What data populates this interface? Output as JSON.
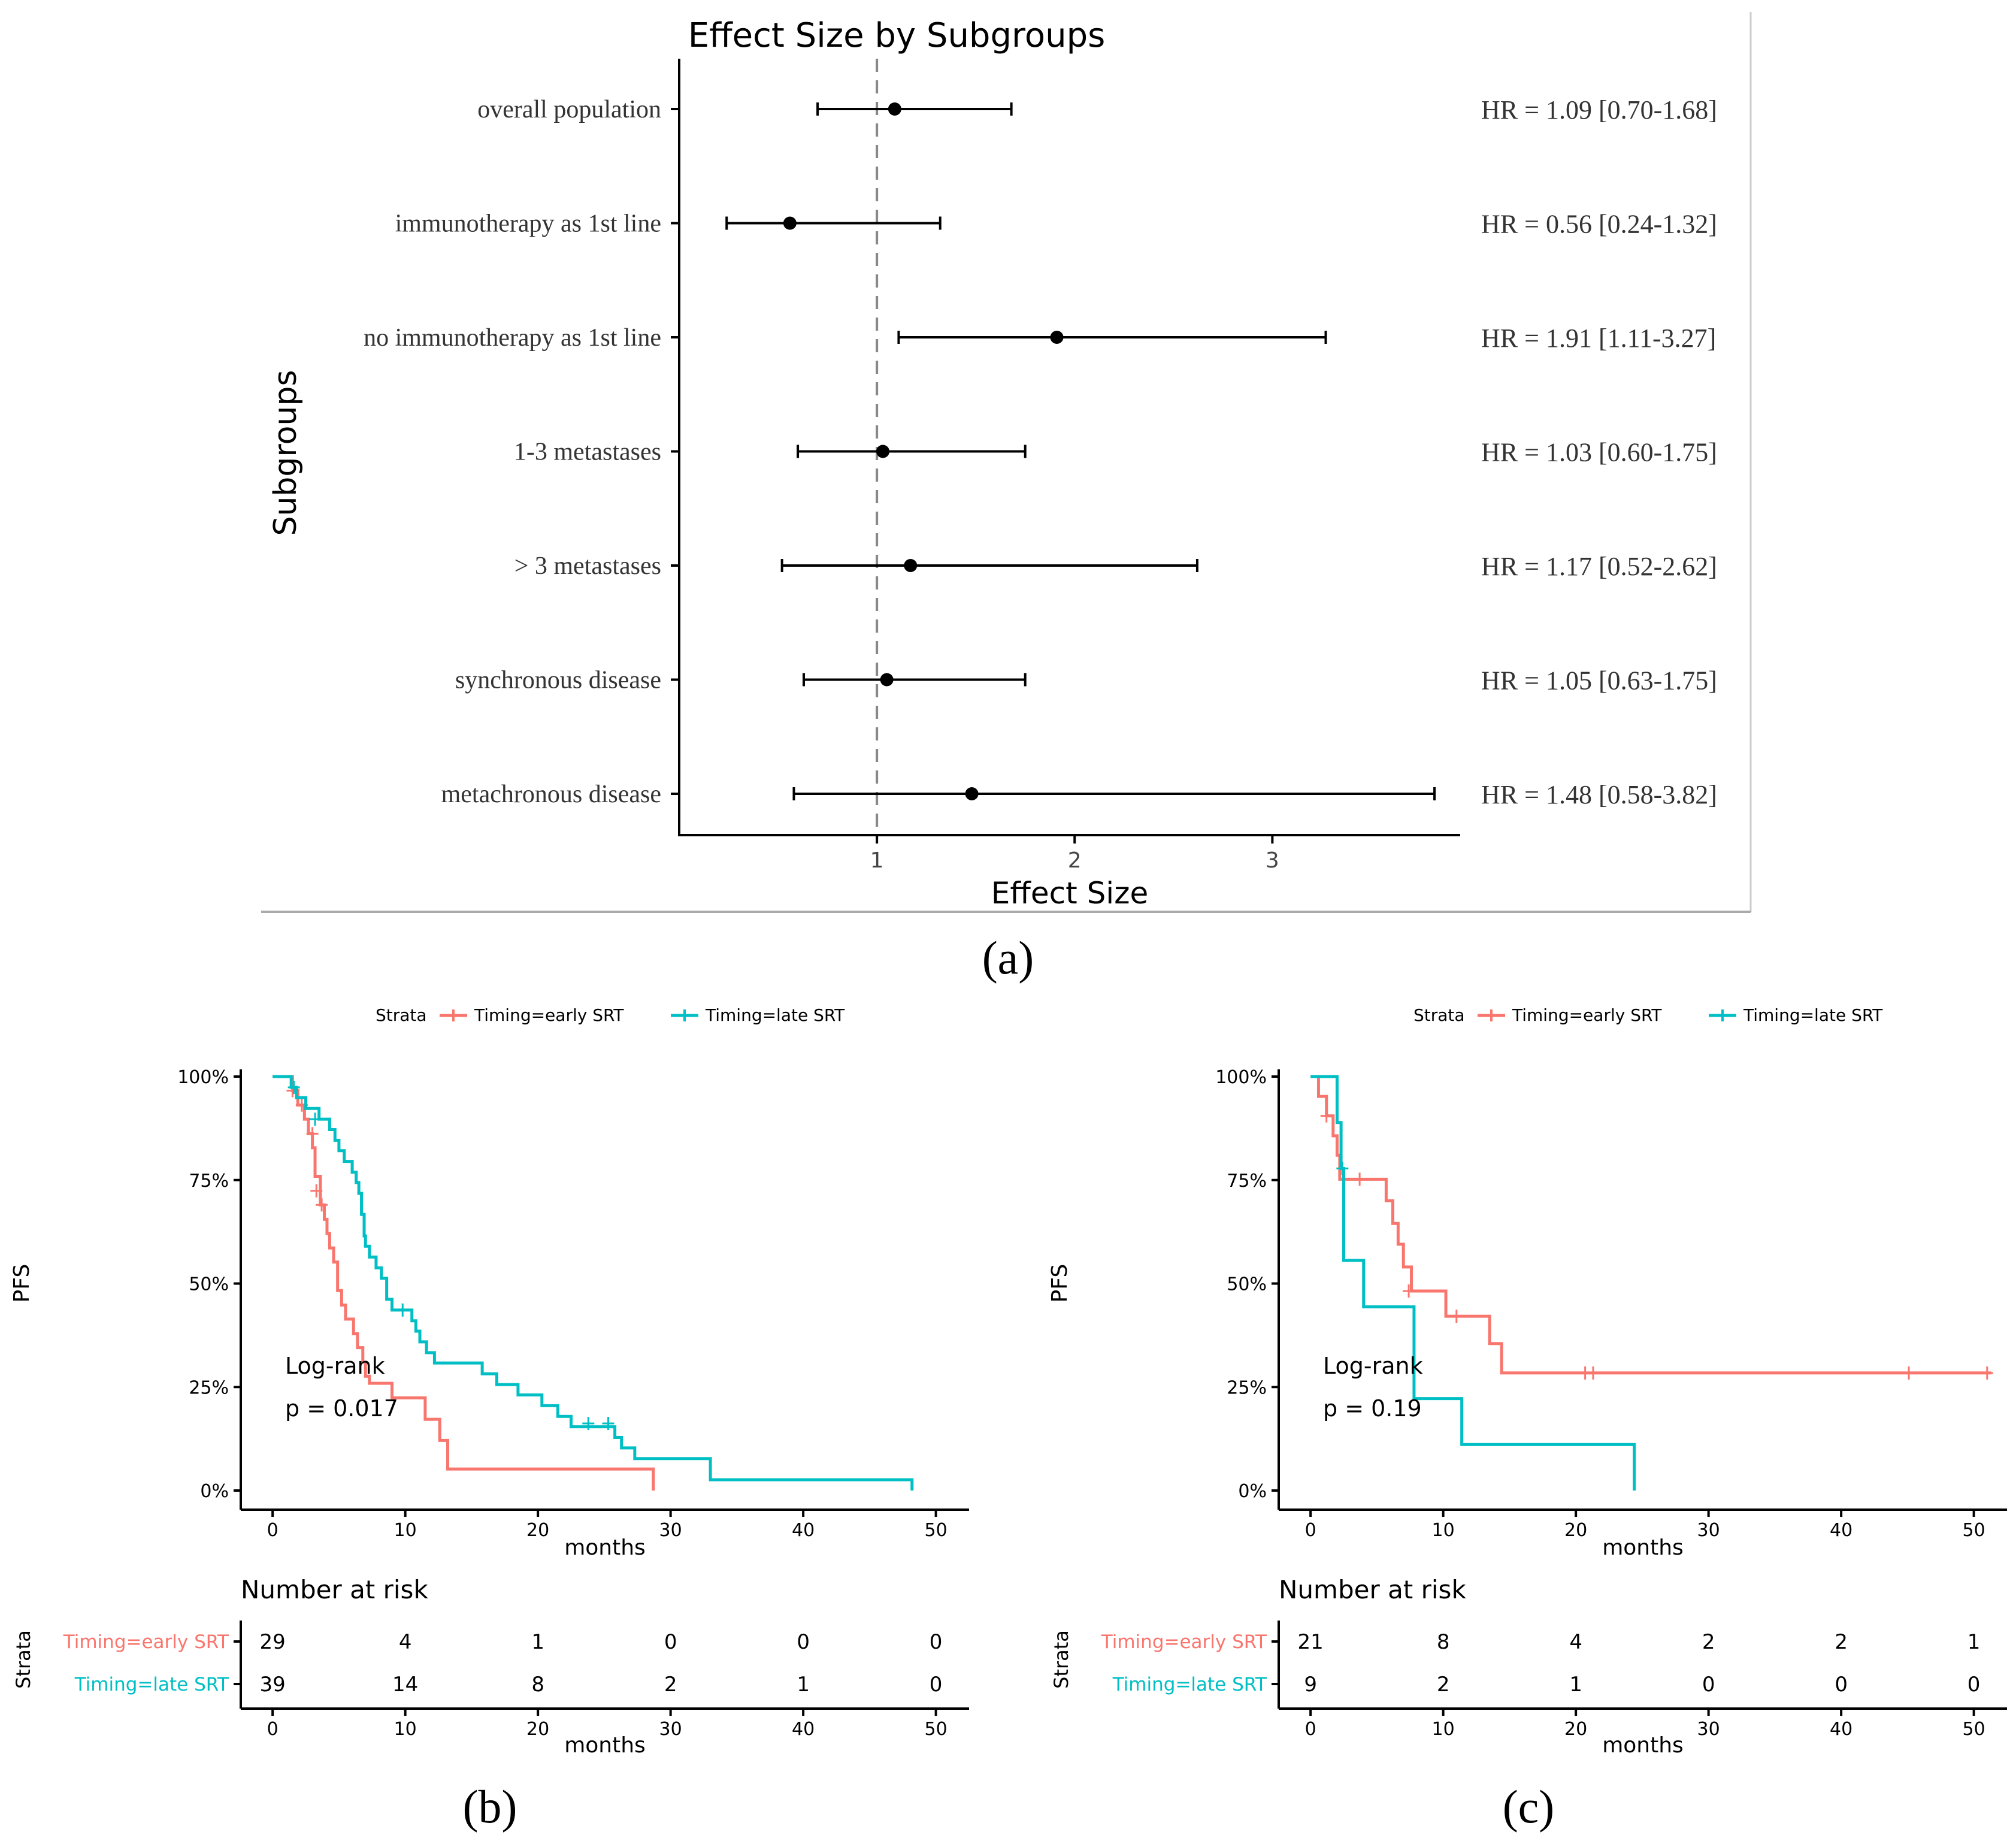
{
  "panel_labels": {
    "a": "(a)",
    "b": "(b)",
    "c": "(c)"
  },
  "colors": {
    "early": "#f8766d",
    "late": "#00bfc4",
    "ink": "#000000",
    "frame": "#cccccc"
  },
  "chart_data": [
    {
      "id": "a",
      "type": "forest",
      "title": "Effect Size by Subgroups",
      "xlabel": "Effect Size",
      "ylabel": "Subgroups",
      "xticks": [
        1,
        2,
        3
      ],
      "xlim": [
        0.0,
        3.95
      ],
      "reference_line": 1,
      "rows": [
        {
          "label": "overall population",
          "est": 1.09,
          "lo": 0.7,
          "hi": 1.68,
          "text": "HR = 1.09 [0.70-1.68]"
        },
        {
          "label": "immunotherapy as 1st line",
          "est": 0.56,
          "lo": 0.24,
          "hi": 1.32,
          "text": "HR = 0.56 [0.24-1.32]"
        },
        {
          "label": "no immunotherapy as 1st line",
          "est": 1.91,
          "lo": 1.11,
          "hi": 3.27,
          "text": "HR = 1.91 [1.11-3.27]"
        },
        {
          "label": "1-3 metastases",
          "est": 1.03,
          "lo": 0.6,
          "hi": 1.75,
          "text": "HR = 1.03 [0.60-1.75]"
        },
        {
          "label": "> 3 metastases",
          "est": 1.17,
          "lo": 0.52,
          "hi": 2.62,
          "text": "HR = 1.17 [0.52-2.62]"
        },
        {
          "label": "synchronous disease",
          "est": 1.05,
          "lo": 0.63,
          "hi": 1.75,
          "text": "HR = 1.05 [0.63-1.75]"
        },
        {
          "label": "metachronous disease",
          "est": 1.48,
          "lo": 0.58,
          "hi": 3.82,
          "text": "HR = 1.48 [0.58-3.82]"
        }
      ]
    },
    {
      "id": "b",
      "type": "line",
      "subtype": "kaplan-meier",
      "legend_title": "Strata",
      "ylabel": "PFS",
      "xlabel": "months",
      "xticks": [
        0,
        10,
        20,
        30,
        40,
        50
      ],
      "xlim": [
        -2.4,
        52.5
      ],
      "yticks": [
        "0%",
        "25%",
        "50%",
        "75%",
        "100%"
      ],
      "ylim": [
        0,
        1
      ],
      "annotation": [
        "Log-rank",
        "p = 0.017"
      ],
      "risk_title": "Number at risk",
      "risk_ylabel": "Strata",
      "series": [
        {
          "name": "Timing=early SRT",
          "color_key": "early",
          "steps": [
            [
              0,
              1.0
            ],
            [
              1.2,
              1.0
            ],
            [
              1.5,
              0.966
            ],
            [
              1.9,
              0.931
            ],
            [
              2.4,
              0.897
            ],
            [
              2.7,
              0.862
            ],
            [
              3.0,
              0.828
            ],
            [
              3.2,
              0.759
            ],
            [
              3.6,
              0.69
            ],
            [
              3.9,
              0.655
            ],
            [
              4.1,
              0.621
            ],
            [
              4.3,
              0.586
            ],
            [
              4.6,
              0.552
            ],
            [
              4.9,
              0.483
            ],
            [
              5.2,
              0.448
            ],
            [
              5.5,
              0.414
            ],
            [
              6.1,
              0.379
            ],
            [
              6.4,
              0.345
            ],
            [
              6.8,
              0.31
            ],
            [
              7.0,
              0.276
            ],
            [
              7.3,
              0.259
            ],
            [
              9.0,
              0.224
            ],
            [
              11.5,
              0.172
            ],
            [
              12.6,
              0.121
            ],
            [
              13.2,
              0.052
            ],
            [
              28.7,
              0.0
            ]
          ],
          "censors": [
            [
              1.5,
              0.966
            ],
            [
              2.2,
              0.931
            ],
            [
              3.0,
              0.862
            ],
            [
              3.3,
              0.724
            ],
            [
              3.7,
              0.69
            ]
          ],
          "end": 28.7,
          "risk": [
            29,
            4,
            1,
            0,
            0,
            0
          ]
        },
        {
          "name": "Timing=late SRT",
          "color_key": "late",
          "steps": [
            [
              0,
              1.0
            ],
            [
              1.4,
              0.974
            ],
            [
              1.8,
              0.949
            ],
            [
              2.5,
              0.923
            ],
            [
              3.5,
              0.897
            ],
            [
              4.3,
              0.872
            ],
            [
              4.7,
              0.846
            ],
            [
              5.0,
              0.821
            ],
            [
              5.4,
              0.795
            ],
            [
              6.0,
              0.769
            ],
            [
              6.3,
              0.744
            ],
            [
              6.5,
              0.718
            ],
            [
              6.7,
              0.667
            ],
            [
              6.9,
              0.615
            ],
            [
              7.0,
              0.59
            ],
            [
              7.3,
              0.564
            ],
            [
              7.8,
              0.538
            ],
            [
              8.2,
              0.513
            ],
            [
              8.6,
              0.462
            ],
            [
              9.0,
              0.436
            ],
            [
              10.5,
              0.41
            ],
            [
              10.8,
              0.385
            ],
            [
              11.1,
              0.359
            ],
            [
              11.6,
              0.333
            ],
            [
              12.2,
              0.308
            ],
            [
              15.8,
              0.282
            ],
            [
              16.9,
              0.256
            ],
            [
              18.5,
              0.231
            ],
            [
              20.3,
              0.205
            ],
            [
              21.5,
              0.179
            ],
            [
              22.5,
              0.154
            ],
            [
              25.8,
              0.128
            ],
            [
              26.3,
              0.103
            ],
            [
              27.3,
              0.077
            ],
            [
              28.5,
              0.077
            ],
            [
              33.0,
              0.026
            ],
            [
              48.2,
              0.0
            ]
          ],
          "censors": [
            [
              1.6,
              0.974
            ],
            [
              3.2,
              0.897
            ],
            [
              9.8,
              0.436
            ],
            [
              23.8,
              0.162
            ],
            [
              25.3,
              0.162
            ]
          ],
          "end": 48.2,
          "risk": [
            39,
            14,
            8,
            2,
            1,
            0
          ]
        }
      ]
    },
    {
      "id": "c",
      "type": "line",
      "subtype": "kaplan-meier",
      "legend_title": "Strata",
      "ylabel": "PFS",
      "xlabel": "months",
      "xticks": [
        0,
        10,
        20,
        30,
        40,
        50
      ],
      "xlim": [
        -2.4,
        52.5
      ],
      "yticks": [
        "0%",
        "25%",
        "50%",
        "75%",
        "100%"
      ],
      "ylim": [
        0,
        1
      ],
      "annotation": [
        "Log-rank",
        "p = 0.19"
      ],
      "risk_title": "Number at risk",
      "risk_ylabel": "Strata",
      "series": [
        {
          "name": "Timing=early SRT",
          "color_key": "early",
          "steps": [
            [
              0,
              1.0
            ],
            [
              0.6,
              0.952
            ],
            [
              1.2,
              0.905
            ],
            [
              1.7,
              0.857
            ],
            [
              2.0,
              0.81
            ],
            [
              2.2,
              0.752
            ],
            [
              5.7,
              0.7
            ],
            [
              6.2,
              0.645
            ],
            [
              6.6,
              0.595
            ],
            [
              7.0,
              0.54
            ],
            [
              7.6,
              0.482
            ],
            [
              10.2,
              0.421
            ],
            [
              13.5,
              0.355
            ],
            [
              14.4,
              0.284
            ],
            [
              51.3,
              0.284
            ]
          ],
          "censors": [
            [
              1.2,
              0.905
            ],
            [
              3.7,
              0.752
            ],
            [
              7.4,
              0.482
            ],
            [
              11.0,
              0.421
            ],
            [
              20.7,
              0.284
            ],
            [
              21.3,
              0.284
            ],
            [
              45.1,
              0.284
            ],
            [
              51.0,
              0.284
            ]
          ],
          "end": 51.3,
          "risk": [
            21,
            8,
            4,
            2,
            2,
            1
          ]
        },
        {
          "name": "Timing=late SRT",
          "color_key": "late",
          "steps": [
            [
              0,
              1.0
            ],
            [
              2.0,
              0.889
            ],
            [
              2.3,
              0.778
            ],
            [
              2.5,
              0.556
            ],
            [
              4.0,
              0.444
            ],
            [
              7.8,
              0.222
            ],
            [
              11.4,
              0.111
            ],
            [
              24.4,
              0.0
            ]
          ],
          "censors": [
            [
              2.4,
              0.778
            ]
          ],
          "end": 24.4,
          "risk": [
            9,
            2,
            1,
            0,
            0,
            0
          ]
        }
      ]
    }
  ]
}
